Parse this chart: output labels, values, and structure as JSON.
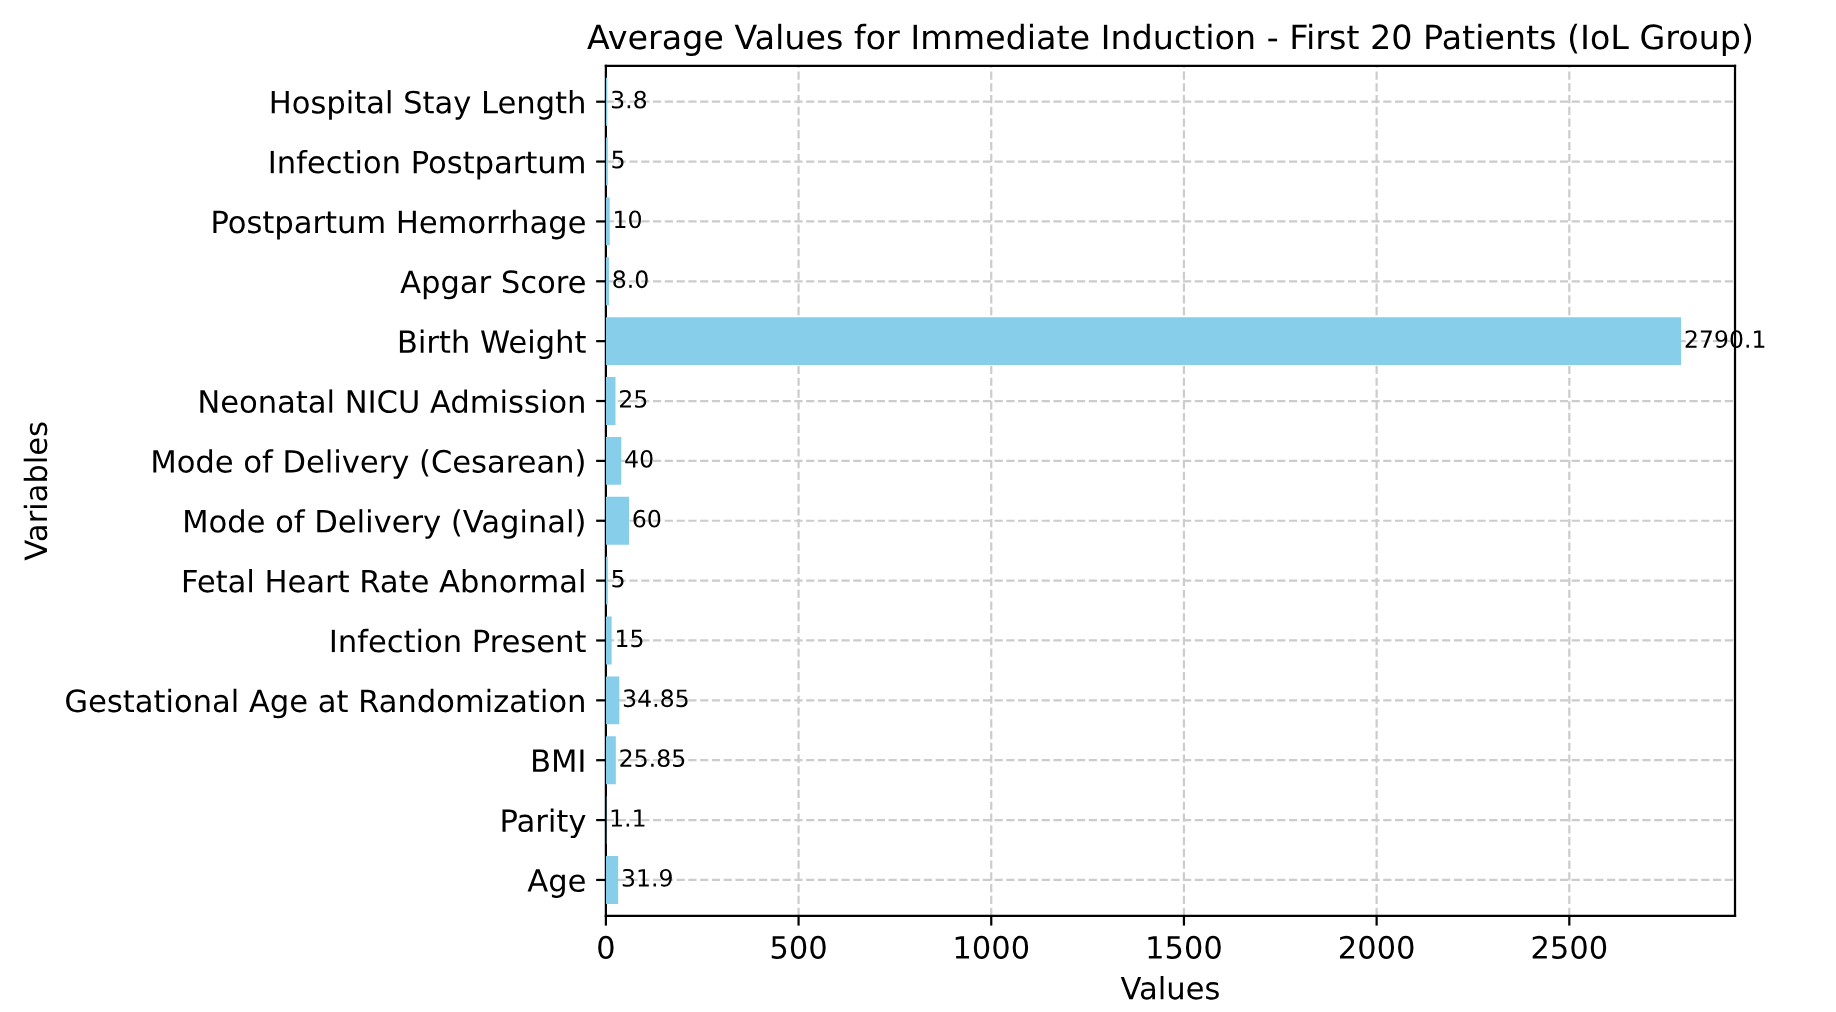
{
  "chart_data": {
    "type": "bar",
    "orientation": "horizontal",
    "title": "Average Values for Immediate Induction - First 20 Patients (IoL Group)",
    "xlabel": "Values",
    "ylabel": "Variables",
    "categories": [
      "Hospital Stay Length",
      "Infection Postpartum",
      "Postpartum Hemorrhage",
      "Apgar Score",
      "Birth Weight",
      "Neonatal NICU Admission",
      "Mode of Delivery (Cesarean)",
      "Mode of Delivery (Vaginal)",
      "Fetal Heart Rate Abnormal",
      "Infection Present",
      "Gestational Age at Randomization",
      "BMI",
      "Parity",
      "Age"
    ],
    "values": [
      3.8,
      5,
      10,
      8.0,
      2790.1,
      25,
      40,
      60,
      5,
      15,
      34.85,
      25.85,
      1.1,
      31.9
    ],
    "value_labels": [
      "3.8",
      "5",
      "10",
      "8.0",
      "2790.1",
      "25",
      "40",
      "60",
      "5",
      "15",
      "34.85",
      "25.85",
      "1.1",
      "31.9"
    ],
    "color": "#87ceeb",
    "xlim": [
      0,
      2930
    ],
    "xticks": [
      0,
      500,
      1000,
      1500,
      2000,
      2500
    ],
    "grid": true,
    "line_style": "dashed"
  }
}
